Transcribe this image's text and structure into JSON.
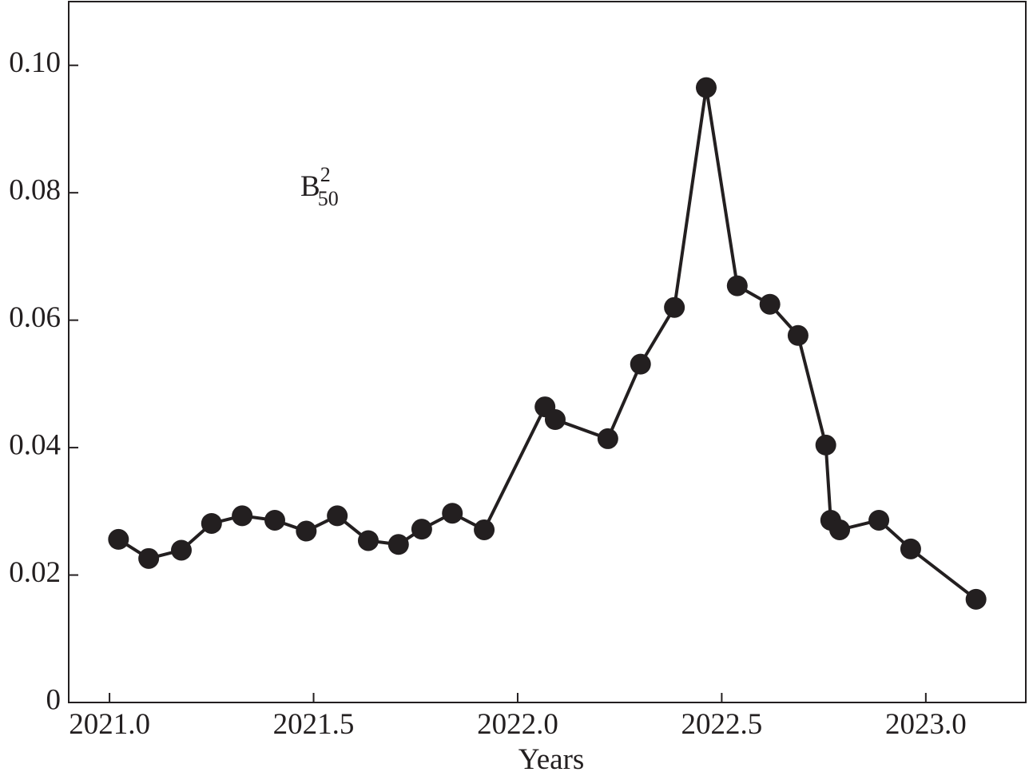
{
  "chart_data": {
    "type": "line",
    "x_label": "Years",
    "annotation": {
      "base": "B",
      "sup": "2",
      "sub": "50"
    },
    "x": [
      2021.022,
      2021.096,
      2021.176,
      2021.25,
      2021.325,
      2021.405,
      2021.482,
      2021.558,
      2021.634,
      2021.708,
      2021.765,
      2021.84,
      2021.918,
      2022.067,
      2022.092,
      2022.221,
      2022.301,
      2022.384,
      2022.462,
      2022.538,
      2022.618,
      2022.687,
      2022.755,
      2022.767,
      2022.789,
      2022.885,
      2022.963,
      2023.123
    ],
    "values": [
      0.0256,
      0.0226,
      0.0239,
      0.0281,
      0.0293,
      0.0286,
      0.0269,
      0.0293,
      0.0254,
      0.0248,
      0.0272,
      0.0297,
      0.0271,
      0.0464,
      0.0444,
      0.0414,
      0.0531,
      0.062,
      0.0965,
      0.0654,
      0.0625,
      0.0576,
      0.0404,
      0.0286,
      0.0271,
      0.0286,
      0.0241,
      0.0162
    ],
    "color": "#231f20",
    "xlim": [
      2020.9,
      2023.245
    ],
    "ylim": [
      0,
      0.11
    ],
    "xticks": [
      {
        "value": 2021,
        "label": "2021.0"
      },
      2021.5,
      {
        "value": 2022,
        "label": "2022.0"
      },
      2022.5,
      {
        "value": 2023,
        "label": "2023.0"
      }
    ],
    "yticks": [
      0,
      0.02,
      0.04,
      0.06,
      0.08,
      {
        "value": 0.1,
        "label": "0.10"
      }
    ]
  }
}
